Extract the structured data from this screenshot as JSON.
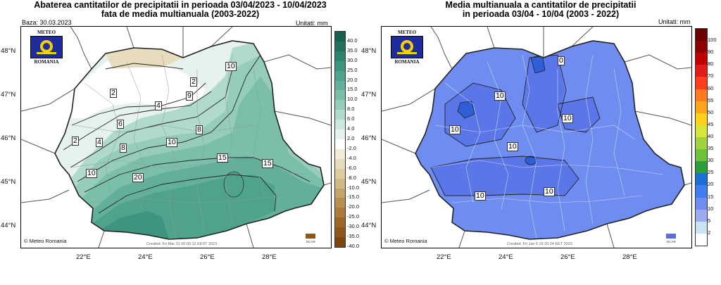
{
  "left": {
    "title_line1": "Abaterea cantitatilor de precipitatii in perioada 03/04/2023 - 10/04/2023",
    "title_line2": "fata de media multianuala (2003-2022)",
    "base_date": "Baza: 30.03.2023",
    "units": "Unitati: mm",
    "lat_ticks": [
      "48°N",
      "47°N",
      "46°N",
      "45°N",
      "44°N"
    ],
    "lon_ticks": [
      "22°E",
      "24°E",
      "26°E",
      "28°E"
    ],
    "logo_top": "METEO",
    "logo_bottom": "ROMANIA",
    "credit": "© Meteo Romania",
    "created": "Created: Fri Mar 31 06:00:12 EEST 2023",
    "ncar": "NCAR",
    "contour_labels": [
      "2",
      "2",
      "4",
      "2",
      "6",
      "4",
      "9",
      "10",
      "8",
      "8",
      "10",
      "10",
      "15",
      "15",
      "20",
      "10"
    ],
    "legend_labels": [
      "40.0",
      "35.0",
      "30.0",
      "25.0",
      "20.0",
      "15.0",
      "10.0",
      "8.0",
      "6.0",
      "4.0",
      "2.0",
      "-2.0",
      "-4.0",
      "-6.0",
      "-8.0",
      "-10.0",
      "-15.0",
      "-20.0",
      "-25.0",
      "-30.0",
      "-35.0",
      "-40.0"
    ],
    "legend_colors": [
      "#1a5e4f",
      "#22705e",
      "#2e836f",
      "#3d947f",
      "#4fa38d",
      "#62b09b",
      "#7bbfab",
      "#95ccbc",
      "#b1dace",
      "#cde6de",
      "#e6f2ee",
      "#ffffff",
      "#f2ecd9",
      "#e7ddbc",
      "#dccca0",
      "#d0b985",
      "#c4a46b",
      "#b78f52",
      "#aa7b3d",
      "#9c682a",
      "#8d561b",
      "#7a4610"
    ]
  },
  "right": {
    "title_line1": "Media multianuala a cantitatilor de precipitatii",
    "title_line2": "in perioada 03/04 - 10/04 (2003 - 2022)",
    "units": "Unitati: mm",
    "lat_ticks": [
      "48°N",
      "47°N",
      "46°N",
      "45°N",
      "44°N"
    ],
    "lon_ticks": [
      "22°E",
      "24°E",
      "26°E",
      "28°E"
    ],
    "logo_top": "METEO",
    "logo_bottom": "ROMANIA",
    "credit": "© Meteo Romania",
    "created": "Created: Fri Jan  6 16:20:24 EET 2023",
    "ncar": "NCAR",
    "contour_labels": [
      "0",
      "10",
      "10",
      "10",
      "10",
      "10",
      "10"
    ],
    "legend_labels": [
      "100",
      "90",
      "80",
      "70",
      "60",
      "55",
      "50",
      "45",
      "40",
      "35",
      "30",
      "25",
      "20",
      "15",
      "10",
      "5",
      "2"
    ],
    "legend_colors": [
      "#6b0000",
      "#8e0000",
      "#c00000",
      "#e31a1c",
      "#ff3d1f",
      "#ff7a1f",
      "#ffa31a",
      "#ffd21a",
      "#d4e63a",
      "#9fd23c",
      "#6cc23a",
      "#2e9e3c",
      "#1d6fd6",
      "#3e7ef0",
      "#6f8df0",
      "#9fa9f2",
      "#c9e3f2",
      "#ffffff"
    ]
  }
}
